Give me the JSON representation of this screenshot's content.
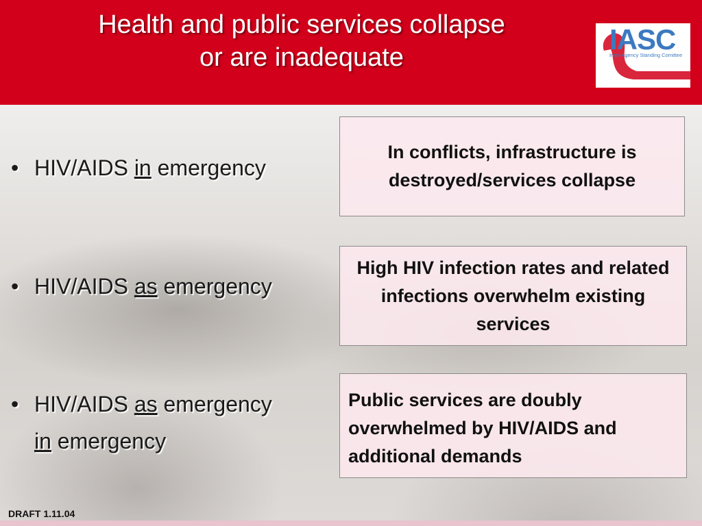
{
  "slide": {
    "title_line1": "Health and public services collapse",
    "title_line2": "or are inadequate",
    "logo": {
      "text": "IASC",
      "subtitle": "Inter-Agency Standing Comittee"
    },
    "bullets": [
      {
        "before": "HIV/AIDS ",
        "underlined": "in",
        "after": " emergency"
      },
      {
        "before": "HIV/AIDS ",
        "underlined": "as",
        "after": " emergency"
      },
      {
        "before": "HIV/AIDS ",
        "underlined": "as",
        "after": " emergency",
        "cont_underlined": "in",
        "cont_after": " emergency"
      }
    ],
    "boxes": [
      {
        "text": "In conflicts, infrastructure is destroyed/services collapse"
      },
      {
        "text": "High HIV infection rates and related infections overwhelm existing  services"
      },
      {
        "text": "Public services are doubly overwhelmed by HIV/AIDS and additional demands"
      }
    ],
    "footer": "DRAFT 1.11.04",
    "colors": {
      "header": "#d2001a",
      "box_fill": "#fce8ee",
      "logo_blue": "#3c7ac0"
    }
  }
}
